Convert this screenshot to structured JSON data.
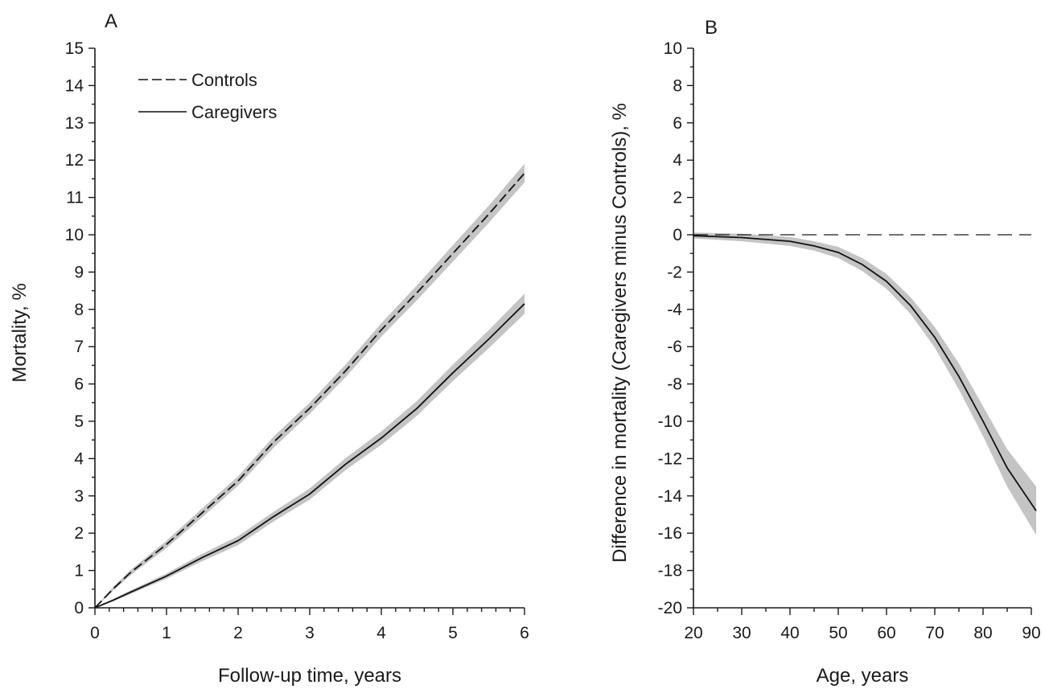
{
  "chart_data": [
    {
      "type": "line",
      "panel": "A",
      "xlabel": "Follow-up time, years",
      "ylabel": "Mortality, %",
      "xlim": [
        0,
        6
      ],
      "ylim": [
        0,
        15
      ],
      "xticks": [
        0,
        1,
        2,
        3,
        4,
        5,
        6
      ],
      "yticks": [
        0,
        1,
        2,
        3,
        4,
        5,
        6,
        7,
        8,
        9,
        10,
        11,
        12,
        13,
        14,
        15
      ],
      "grid": false,
      "legend_position": "top-left",
      "colors": {
        "line": "#111111",
        "band": "#c4c4c4"
      },
      "series": [
        {
          "name": "Controls",
          "style": "dashed",
          "x": [
            0,
            0.25,
            0.5,
            1,
            1.5,
            2,
            2.5,
            3,
            3.5,
            4,
            4.5,
            5,
            5.5,
            6
          ],
          "values": [
            0,
            0.5,
            0.95,
            1.7,
            2.55,
            3.4,
            4.45,
            5.35,
            6.35,
            7.45,
            8.45,
            9.5,
            10.55,
            11.65
          ],
          "lower": [
            0,
            0.45,
            0.88,
            1.6,
            2.43,
            3.27,
            4.3,
            5.2,
            6.18,
            7.27,
            8.25,
            9.28,
            10.32,
            11.4
          ],
          "upper": [
            0,
            0.55,
            1.02,
            1.8,
            2.67,
            3.53,
            4.6,
            5.5,
            6.52,
            7.63,
            8.65,
            9.72,
            10.78,
            11.9
          ]
        },
        {
          "name": "Caregivers",
          "style": "solid",
          "x": [
            0,
            0.25,
            0.5,
            1,
            1.5,
            2,
            2.5,
            3,
            3.5,
            4,
            4.5,
            5,
            5.5,
            6
          ],
          "values": [
            0,
            0.2,
            0.42,
            0.85,
            1.35,
            1.8,
            2.45,
            3.05,
            3.85,
            4.55,
            5.35,
            6.3,
            7.2,
            8.15
          ],
          "lower": [
            0,
            0.17,
            0.37,
            0.78,
            1.25,
            1.68,
            2.32,
            2.9,
            3.69,
            4.37,
            5.15,
            6.08,
            6.96,
            7.88
          ],
          "upper": [
            0,
            0.23,
            0.47,
            0.92,
            1.45,
            1.92,
            2.58,
            3.2,
            4.01,
            4.73,
            5.55,
            6.52,
            7.44,
            8.42
          ]
        }
      ]
    },
    {
      "type": "line",
      "panel": "B",
      "xlabel": "Age, years",
      "ylabel": "Difference in mortality (Caregivers minus Controls), %",
      "xlim": [
        20,
        90
      ],
      "ylim": [
        -20,
        10
      ],
      "xticks": [
        20,
        30,
        40,
        50,
        60,
        70,
        80,
        90
      ],
      "yticks": [
        -20,
        -18,
        -16,
        -14,
        -12,
        -10,
        -8,
        -6,
        -4,
        -2,
        0,
        2,
        4,
        6,
        8,
        10
      ],
      "grid": false,
      "reference_line": {
        "y": 0,
        "style": "dashed"
      },
      "colors": {
        "line": "#111111",
        "band": "#c4c4c4"
      },
      "series": [
        {
          "style": "solid",
          "x": [
            20,
            30,
            40,
            45,
            50,
            55,
            60,
            65,
            70,
            75,
            80,
            85,
            91
          ],
          "values": [
            -0.05,
            -0.15,
            -0.35,
            -0.6,
            -0.95,
            -1.6,
            -2.5,
            -3.8,
            -5.5,
            -7.6,
            -10.0,
            -12.5,
            -14.8
          ],
          "lower": [
            -0.2,
            -0.35,
            -0.6,
            -0.85,
            -1.25,
            -1.95,
            -2.9,
            -4.25,
            -6.05,
            -8.3,
            -10.8,
            -13.5,
            -16.1
          ],
          "upper": [
            0.12,
            0.05,
            -0.12,
            -0.35,
            -0.65,
            -1.25,
            -2.1,
            -3.35,
            -4.95,
            -6.9,
            -9.2,
            -11.5,
            -13.5
          ]
        }
      ]
    }
  ]
}
